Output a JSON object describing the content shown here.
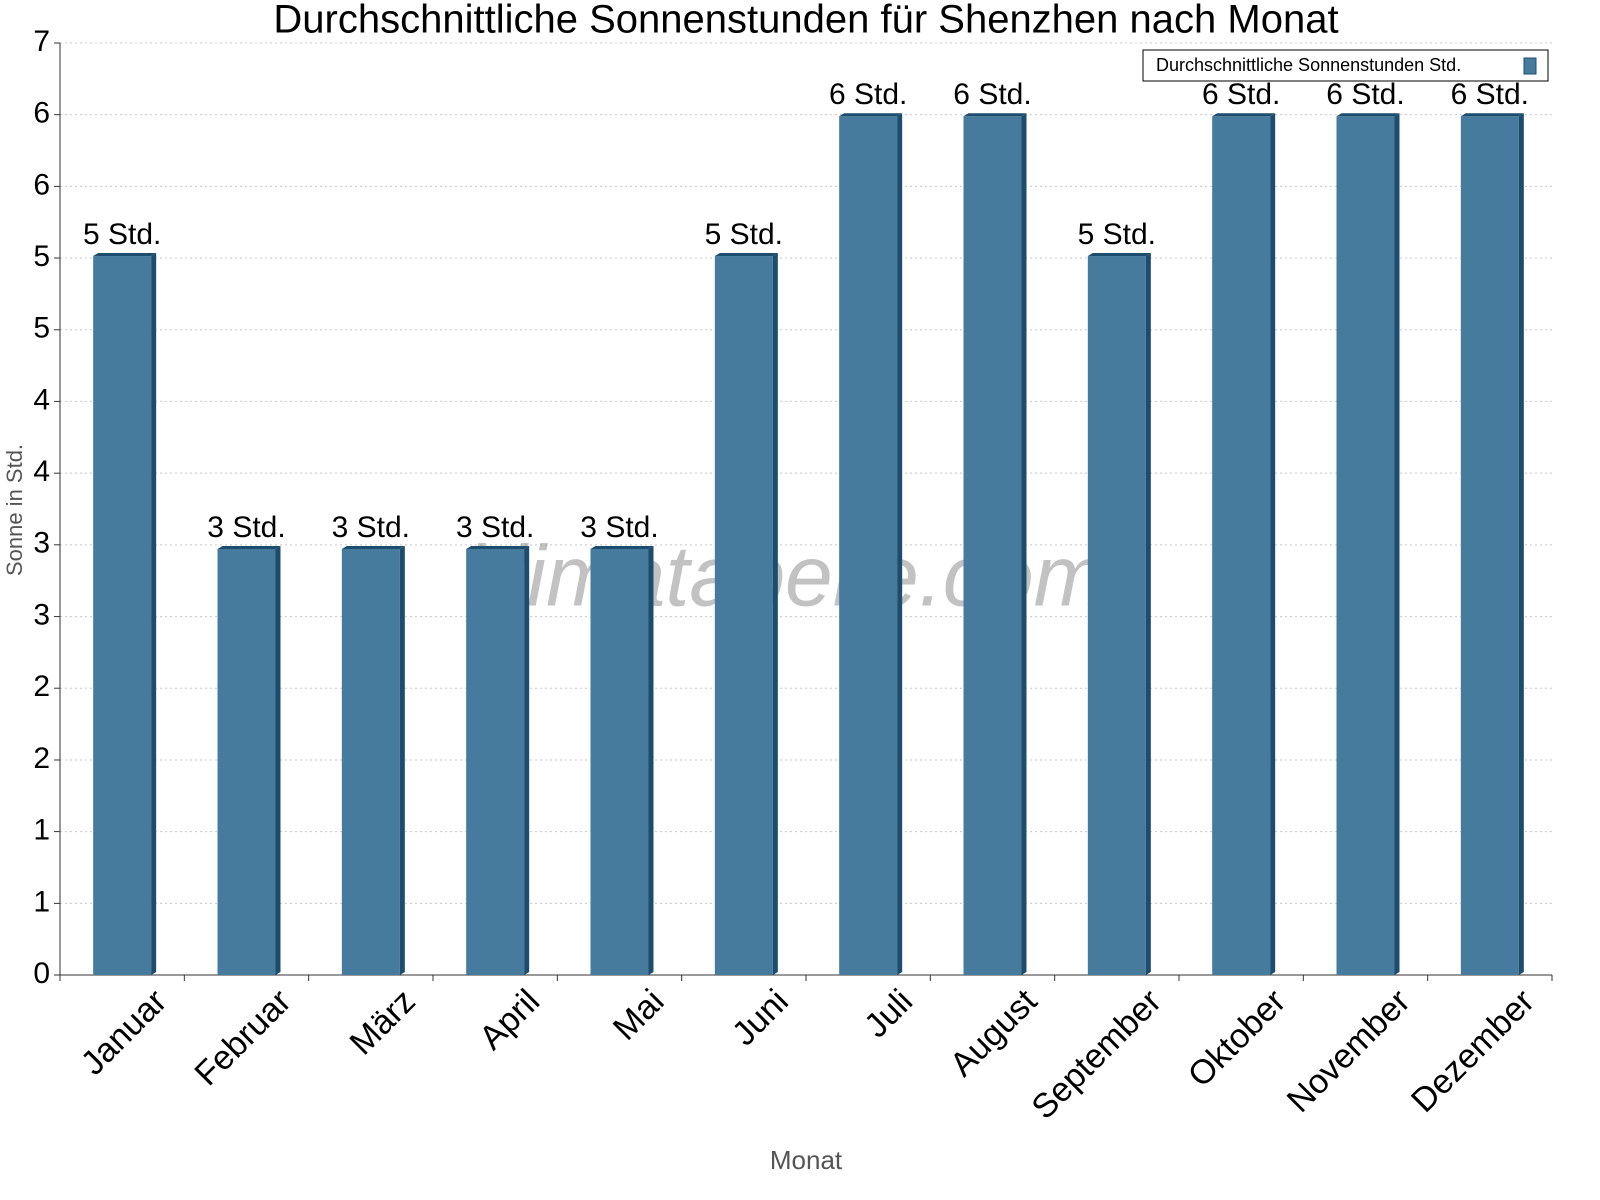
{
  "chart_data": {
    "type": "bar",
    "title": "Durchschnittliche Sonnenstunden für Shenzhen nach Monat",
    "x_label": "Monat",
    "y_label": "Sonne in Std.",
    "watermark": "klimatabelle.com",
    "categories": [
      "Januar",
      "Februar",
      "März",
      "April",
      "Mai",
      "Juni",
      "Juli",
      "August",
      "September",
      "Oktober",
      "November",
      "Dezember"
    ],
    "series": [
      {
        "name": "Durchschnittliche Sonnenstunden Std.",
        "color": "#467b9d",
        "values": [
          5.4,
          3.2,
          3.2,
          3.2,
          3.2,
          5.4,
          6.45,
          6.45,
          5.4,
          6.45,
          6.45,
          6.45
        ],
        "value_labels": [
          "5 Std.",
          "3 Std.",
          "3 Std.",
          "3 Std.",
          "3 Std.",
          "5 Std.",
          "6 Std.",
          "6 Std.",
          "5 Std.",
          "6 Std.",
          "6 Std.",
          "6 Std."
        ]
      }
    ],
    "ylim": [
      0,
      7
    ],
    "yticks": [
      0,
      {
        "value": 0.538,
        "label": "1"
      },
      {
        "value": 1.077,
        "label": "1"
      },
      {
        "value": 1.615,
        "label": "2"
      },
      {
        "value": 2.154,
        "label": "2"
      },
      {
        "value": 2.692,
        "label": "3"
      },
      {
        "value": 3.231,
        "label": "3"
      },
      {
        "value": 3.769,
        "label": "4"
      },
      {
        "value": 4.308,
        "label": "4"
      },
      {
        "value": 4.846,
        "label": "5"
      },
      {
        "value": 5.385,
        "label": "5"
      },
      {
        "value": 5.923,
        "label": "6"
      },
      {
        "value": 6.462,
        "label": "6"
      },
      7
    ],
    "grid": true,
    "legend": "top-right"
  }
}
